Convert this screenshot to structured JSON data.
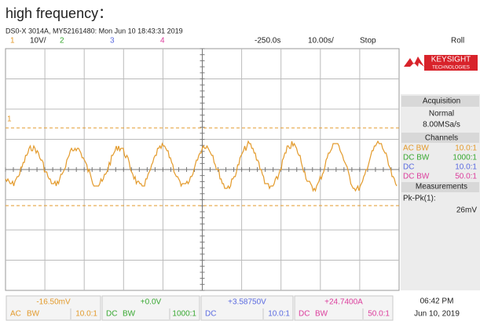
{
  "title": "high frequency：",
  "info": "DS0-X 3014A, MY52161480: Mon Jun 10 18:43:31 2019",
  "status_bar": {
    "ch1": "1",
    "ch1_scale": "10V/",
    "ch2": "2",
    "ch3": "3",
    "ch4": "4",
    "delay": "-250.0s",
    "timebase": "10.00s/",
    "run_state": "Stop",
    "mode": "Roll"
  },
  "trigger_marker": "1",
  "side_panel": {
    "brand": "KEYSIGHT",
    "brand_sub": "TECHNOLOGIES",
    "acquisition": {
      "title": "Acquisition",
      "mode": "Normal",
      "rate": "8.00MSa/s"
    },
    "channels": {
      "title": "Channels",
      "rows": [
        {
          "coupling": "AC BW",
          "probe": "10.0:1"
        },
        {
          "coupling": "DC BW",
          "probe": "1000:1"
        },
        {
          "coupling": "DC",
          "probe": "10.0:1"
        },
        {
          "coupling": "DC BW",
          "probe": "50.0:1"
        }
      ]
    },
    "measurements": {
      "title": "Measurements",
      "label": "Pk-Pk(1):",
      "value": "26mV"
    }
  },
  "channel_boxes": [
    {
      "offset": "-16.50mV",
      "coupling": "AC",
      "bw": "BW",
      "probe": "10.0:1"
    },
    {
      "offset": "+0.0V",
      "coupling": "DC",
      "bw": "BW",
      "probe": "1000:1"
    },
    {
      "offset": "+3.58750V",
      "coupling": "DC",
      "probe": "10.0:1"
    },
    {
      "offset": "+24.7400A",
      "coupling": "DC",
      "bw": "BW",
      "probe": "50.0:1"
    }
  ],
  "clock": {
    "time": "06:42 PM",
    "date": "Jun 10, 2019"
  }
}
